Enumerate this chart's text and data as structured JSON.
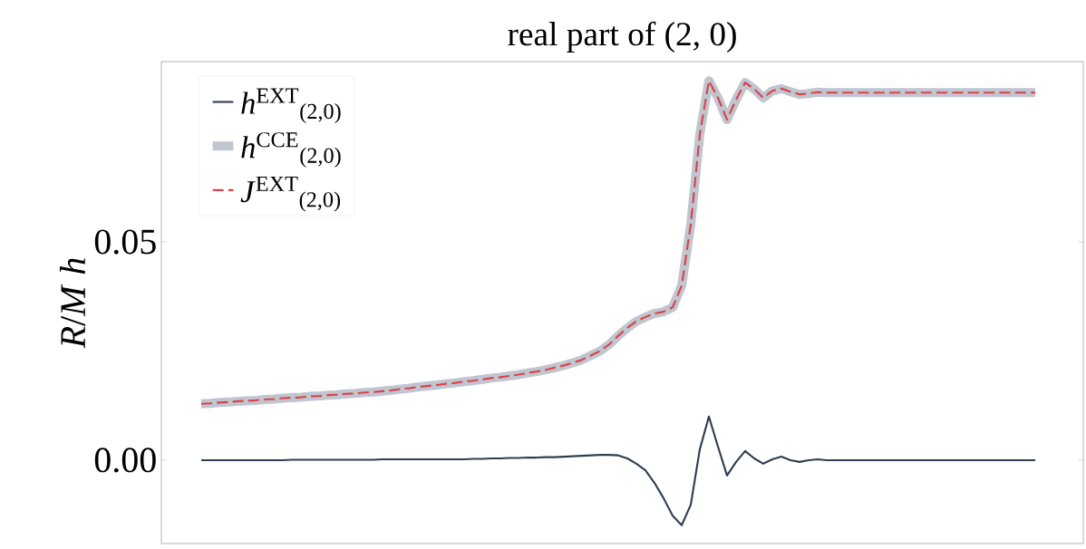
{
  "chart_data": {
    "type": "line",
    "title": "real part of (2, 0)",
    "ylabel": "*R*/*M* *h*",
    "categories": [
      null,
      null,
      null,
      null,
      null,
      null,
      null,
      null,
      null,
      null,
      null,
      null,
      null,
      null,
      null,
      null,
      null,
      null,
      null,
      null,
      null,
      null,
      null,
      null,
      null,
      null,
      null,
      null,
      null,
      null,
      null,
      null,
      null,
      null,
      null,
      null,
      null,
      null,
      null,
      null,
      null,
      null,
      null,
      null,
      null,
      null,
      null,
      null,
      null,
      null,
      null,
      null,
      null,
      null,
      null,
      null,
      null,
      null,
      null,
      null,
      null,
      null,
      null,
      null,
      null,
      null,
      null,
      null,
      null,
      null,
      null,
      null,
      null,
      null,
      null,
      null,
      null,
      null,
      null,
      null,
      null,
      null,
      null,
      null,
      null,
      null,
      null,
      null,
      null,
      null,
      null,
      null,
      null
    ],
    "series": [
      {
        "name": "*h*$^{EXT}$$_{(2,0)}$",
        "color": "#2e3f52",
        "line_style": "solid",
        "values": [
          0,
          0,
          0,
          0,
          0,
          0,
          0,
          0,
          0,
          0,
          0.0001,
          0.0001,
          0.0001,
          0.0001,
          0.0001,
          0.0001,
          0.0001,
          0.0001,
          0.0001,
          0.0001,
          0.0002,
          0.0002,
          0.0002,
          0.0002,
          0.0002,
          0.0002,
          0.0002,
          0.0002,
          0.0002,
          0.0002,
          0.0003,
          0.0003,
          0.0004,
          0.0004,
          0.0005,
          0.0005,
          0.0006,
          0.0006,
          0.0007,
          0.0007,
          0.0008,
          0.0009,
          0.001,
          0.0011,
          0.0012,
          0.0012,
          0.0011,
          0.0004,
          -0.0008,
          -0.0023,
          -0.0052,
          -0.0087,
          -0.0127,
          -0.0149,
          -0.0102,
          0.0025,
          0.01,
          0.0031,
          -0.0035,
          -0.0004,
          0.0021,
          0.0004,
          -0.0008,
          0.0002,
          0.0008,
          0,
          -0.0004,
          0,
          0.0002,
          0,
          0,
          0,
          0,
          0,
          0,
          0,
          0,
          0,
          0,
          0,
          0,
          0,
          0,
          0,
          0,
          0,
          0,
          0,
          0,
          0,
          0,
          0,
          0
        ]
      },
      {
        "name": "*h*$^{CCE}$$_{(2,0)}$",
        "color": "#c0c5cf",
        "line_style": "solid",
        "values": [
          0.0129,
          0.013,
          0.0132,
          0.0133,
          0.0135,
          0.0136,
          0.0137,
          0.0139,
          0.014,
          0.0142,
          0.0143,
          0.0144,
          0.0146,
          0.0147,
          0.0149,
          0.015,
          0.0152,
          0.0153,
          0.0155,
          0.0156,
          0.0158,
          0.016,
          0.0163,
          0.0165,
          0.0168,
          0.017,
          0.0172,
          0.0175,
          0.0177,
          0.018,
          0.0182,
          0.0185,
          0.0188,
          0.019,
          0.0193,
          0.0196,
          0.02,
          0.0203,
          0.0207,
          0.0212,
          0.0217,
          0.0223,
          0.023,
          0.024,
          0.025,
          0.0265,
          0.0285,
          0.0303,
          0.0318,
          0.0328,
          0.0336,
          0.034,
          0.035,
          0.04,
          0.054,
          0.0747,
          0.0869,
          0.083,
          0.078,
          0.0826,
          0.0865,
          0.085,
          0.083,
          0.0846,
          0.0851,
          0.0844,
          0.0838,
          0.084,
          0.0843,
          0.0842,
          0.0842,
          0.0842,
          0.0842,
          0.0842,
          0.0842,
          0.0842,
          0.0842,
          0.0842,
          0.0842,
          0.0842,
          0.0842,
          0.0842,
          0.0842,
          0.0842,
          0.0842,
          0.0842,
          0.0842,
          0.0842,
          0.0842,
          0.0842,
          0.0842,
          0.0842,
          0.0842
        ]
      },
      {
        "name": "*J*$^{EXT}$$_{(2,0)}$",
        "color": "#d9434a",
        "line_style": "dashed",
        "values": [
          0.0129,
          0.013,
          0.0132,
          0.0133,
          0.0135,
          0.0136,
          0.0137,
          0.0139,
          0.014,
          0.0142,
          0.0143,
          0.0144,
          0.0146,
          0.0147,
          0.0149,
          0.015,
          0.0152,
          0.0153,
          0.0155,
          0.0156,
          0.0158,
          0.016,
          0.0163,
          0.0165,
          0.0168,
          0.017,
          0.0172,
          0.0175,
          0.0177,
          0.018,
          0.0182,
          0.0185,
          0.0188,
          0.019,
          0.0193,
          0.0196,
          0.02,
          0.0203,
          0.0207,
          0.0212,
          0.0217,
          0.0223,
          0.023,
          0.024,
          0.025,
          0.0265,
          0.0285,
          0.0303,
          0.0318,
          0.0328,
          0.0336,
          0.034,
          0.035,
          0.04,
          0.054,
          0.0747,
          0.0869,
          0.083,
          0.078,
          0.0826,
          0.0865,
          0.085,
          0.083,
          0.0846,
          0.0851,
          0.0844,
          0.0838,
          0.084,
          0.0843,
          0.0842,
          0.0842,
          0.0842,
          0.0842,
          0.0842,
          0.0842,
          0.0842,
          0.0842,
          0.0842,
          0.0842,
          0.0842,
          0.0842,
          0.0842,
          0.0842,
          0.0842,
          0.0842,
          0.0842,
          0.0842,
          0.0842,
          0.0842,
          0.0842,
          0.0842,
          0.0842,
          0.0842
        ]
      }
    ],
    "ylim": [
      -0.0191,
      0.0913
    ],
    "yticks": [
      {
        "value": 0,
        "label": "0.00"
      },
      {
        "value": 0.05,
        "label": "0.05"
      }
    ],
    "grid": false,
    "legend": "top left",
    "marker": "none",
    "tick_labels": "y"
  }
}
